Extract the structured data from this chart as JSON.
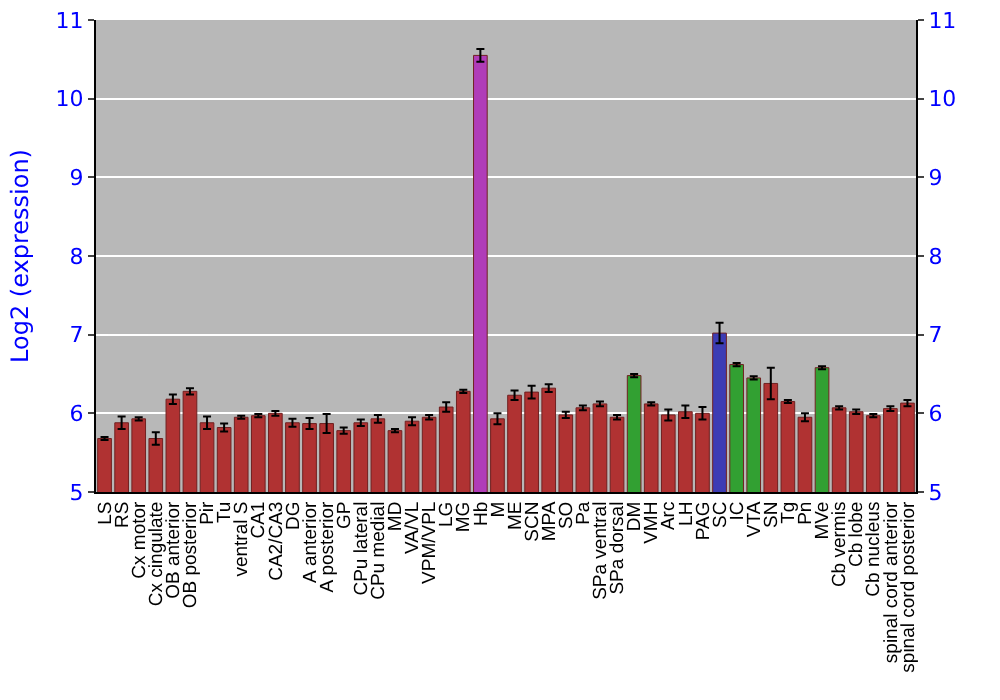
{
  "chart_data": {
    "type": "bar",
    "ylabel": "Log2 (expression)",
    "categories": [
      "LS",
      "RS",
      "Cx motor",
      "Cx cingulate",
      "OB anterior",
      "OB posterior",
      "Pir",
      "Tu",
      "ventral S",
      "CA1",
      "CA2/CA3",
      "DG",
      "A anterior",
      "A posterior",
      "GP",
      "CPu lateral",
      "CPu medial",
      "MD",
      "VA/VL",
      "VPM/VPL",
      "LG",
      "MG",
      "Hb",
      "M",
      "ME",
      "SCN",
      "MPA",
      "SO",
      "Pa",
      "SPa ventral",
      "SPa dorsal",
      "DM",
      "VMH",
      "Arc",
      "LH",
      "PAG",
      "SC",
      "IC",
      "VTA",
      "SN",
      "Tg",
      "Pn",
      "MVe",
      "Cb vermis",
      "Cb lobe",
      "Cb nucleus",
      "spinal cord anterior",
      "spinal cord posterior"
    ],
    "values": [
      5.68,
      5.88,
      5.93,
      5.68,
      6.18,
      6.28,
      5.88,
      5.82,
      5.95,
      5.97,
      6.0,
      5.88,
      5.87,
      5.87,
      5.78,
      5.88,
      5.93,
      5.78,
      5.9,
      5.95,
      6.08,
      6.28,
      10.55,
      5.93,
      6.23,
      6.27,
      6.32,
      5.98,
      6.07,
      6.12,
      5.95,
      6.48,
      6.12,
      5.98,
      6.02,
      6.0,
      7.02,
      6.62,
      6.45,
      6.38,
      6.15,
      5.95,
      6.58,
      6.07,
      6.02,
      5.97,
      6.06,
      6.13
    ],
    "errors": [
      0.02,
      0.08,
      0.02,
      0.08,
      0.06,
      0.04,
      0.08,
      0.05,
      0.02,
      0.02,
      0.03,
      0.05,
      0.07,
      0.12,
      0.04,
      0.04,
      0.05,
      0.02,
      0.05,
      0.03,
      0.06,
      0.02,
      0.08,
      0.07,
      0.06,
      0.08,
      0.05,
      0.04,
      0.03,
      0.03,
      0.03,
      0.02,
      0.02,
      0.07,
      0.08,
      0.08,
      0.13,
      0.02,
      0.02,
      0.2,
      0.02,
      0.05,
      0.02,
      0.02,
      0.03,
      0.02,
      0.03,
      0.04
    ],
    "colors": [
      "#b03232",
      "#b03232",
      "#b03232",
      "#b03232",
      "#b03232",
      "#b03232",
      "#b03232",
      "#b03232",
      "#b03232",
      "#b03232",
      "#b03232",
      "#b03232",
      "#b03232",
      "#b03232",
      "#b03232",
      "#b03232",
      "#b03232",
      "#b03232",
      "#b03232",
      "#b03232",
      "#b03232",
      "#b03232",
      "#b03cb8",
      "#b03232",
      "#b03232",
      "#b03232",
      "#b03232",
      "#b03232",
      "#b03232",
      "#b03232",
      "#b03232",
      "#32a032",
      "#b03232",
      "#b03232",
      "#b03232",
      "#b03232",
      "#3c3cb4",
      "#32a032",
      "#32a032",
      "#b03232",
      "#b03232",
      "#b03232",
      "#32a032",
      "#b03232",
      "#b03232",
      "#b03232",
      "#b03232",
      "#b03232"
    ],
    "ylim": [
      5,
      11
    ],
    "yticks": [
      5,
      6,
      7,
      8,
      9,
      10,
      11
    ],
    "y2lim": [
      5,
      11
    ],
    "y2ticks": [
      5,
      6,
      7,
      8,
      9,
      10,
      11
    ],
    "grid": "y"
  }
}
